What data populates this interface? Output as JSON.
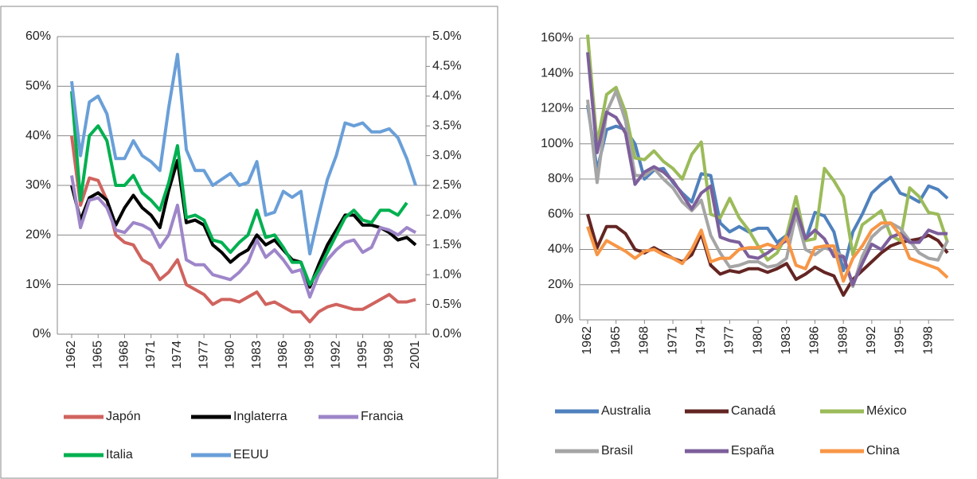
{
  "chart_data": [
    {
      "type": "line",
      "legend": "bottom",
      "grid": true,
      "x": [
        1962,
        1963,
        1964,
        1965,
        1966,
        1967,
        1968,
        1969,
        1970,
        1971,
        1972,
        1973,
        1974,
        1975,
        1976,
        1977,
        1978,
        1979,
        1980,
        1981,
        1982,
        1983,
        1984,
        1985,
        1986,
        1987,
        1988,
        1989,
        1990,
        1991,
        1992,
        1993,
        1994,
        1995,
        1996,
        1997,
        1998,
        1999,
        2000,
        2001
      ],
      "xlim": [
        1962,
        2001
      ],
      "xticks": [
        1962,
        1965,
        1968,
        1971,
        1974,
        1977,
        1980,
        1983,
        1986,
        1989,
        1992,
        1995,
        1998,
        2001
      ],
      "ylim": [
        0,
        60
      ],
      "yticks": [
        {
          "value": 0,
          "label": "0%"
        },
        {
          "value": 10,
          "label": "10%"
        },
        {
          "value": 20,
          "label": "20%"
        },
        {
          "value": 30,
          "label": "30%"
        },
        {
          "value": 40,
          "label": "40%"
        },
        {
          "value": 50,
          "label": "50%"
        },
        {
          "value": 60,
          "label": "60%"
        }
      ],
      "y2lim": [
        0,
        5
      ],
      "y2ticks": [
        {
          "value": 0,
          "label": "0.0%"
        },
        {
          "value": 0.5,
          "label": "0.5%"
        },
        {
          "value": 1,
          "label": "1.0%"
        },
        {
          "value": 1.5,
          "label": "1.5%"
        },
        {
          "value": 2,
          "label": "2.0%"
        },
        {
          "value": 2.5,
          "label": "2.5%"
        },
        {
          "value": 3,
          "label": "3.0%"
        },
        {
          "value": 3.5,
          "label": "3.5%"
        },
        {
          "value": 4,
          "label": "4.0%"
        },
        {
          "value": 4.5,
          "label": "4.5%"
        },
        {
          "value": 5,
          "label": "5.0%"
        }
      ],
      "series": [
        {
          "name": "Japón",
          "color": "#d0635e",
          "values": [
            40,
            26,
            31.5,
            31,
            27,
            20,
            18.5,
            18,
            15,
            14,
            11,
            12.5,
            15,
            10,
            9,
            8,
            6,
            7,
            7,
            6.5,
            7.5,
            8.5,
            6,
            6.5,
            5.5,
            4.5,
            4.5,
            2.5,
            4.5,
            5.5,
            6,
            5.5,
            5,
            5,
            6,
            7,
            8,
            6.5,
            6.5,
            7
          ]
        },
        {
          "name": "Inglaterra",
          "color": "#000000",
          "values": [
            30,
            23,
            27.5,
            28.5,
            27,
            22,
            25.5,
            28,
            25.5,
            24,
            21.5,
            29,
            35,
            22.5,
            23,
            22,
            18,
            16.5,
            14.5,
            16,
            17,
            20,
            18,
            19,
            17,
            15,
            14.5,
            9.5,
            14,
            18,
            21,
            24,
            24,
            22,
            22,
            21.5,
            20.5,
            19,
            19.5,
            18
          ]
        },
        {
          "name": "Francia",
          "color": "#9e86c9",
          "values": [
            32,
            21.5,
            27,
            27.5,
            25.5,
            21,
            20.5,
            22.5,
            22,
            21,
            17.5,
            20,
            26,
            15,
            14,
            14,
            12,
            11.5,
            11,
            12.5,
            14.5,
            19,
            15.5,
            17,
            15,
            12.5,
            13,
            7.5,
            12,
            15,
            17,
            18.5,
            19,
            16.5,
            17.5,
            21.5,
            21,
            20,
            21.5,
            20.5
          ]
        },
        {
          "name": "Italia",
          "color": "#00b050",
          "values": [
            49,
            27,
            40,
            42,
            39,
            30,
            30,
            32,
            28.5,
            27,
            25,
            30.5,
            38,
            23.5,
            24,
            23,
            19,
            18.5,
            16.5,
            18.5,
            20,
            25,
            19.5,
            20,
            17.5,
            14.5,
            14.5,
            10,
            13,
            16.5,
            20,
            23.5,
            25,
            23,
            22.5,
            25,
            25,
            24,
            26.5,
            null
          ]
        },
        {
          "name": "EEUU",
          "color": "#6a9fd8",
          "axis": "y2",
          "values": [
            4.25,
            3.0,
            3.9,
            4.0,
            3.7,
            2.95,
            2.95,
            3.25,
            3.0,
            2.9,
            2.75,
            3.8,
            4.7,
            3.1,
            2.75,
            2.75,
            2.5,
            2.6,
            2.7,
            2.5,
            2.55,
            2.9,
            2.0,
            2.05,
            2.4,
            2.3,
            2.4,
            1.35,
            2.0,
            2.6,
            3.0,
            3.55,
            3.5,
            3.55,
            3.4,
            3.4,
            3.45,
            3.3,
            2.95,
            2.5
          ]
        }
      ]
    },
    {
      "type": "line",
      "legend": "bottom",
      "grid": true,
      "x": [
        1962,
        1963,
        1964,
        1965,
        1966,
        1967,
        1968,
        1969,
        1970,
        1971,
        1972,
        1973,
        1974,
        1975,
        1976,
        1977,
        1978,
        1979,
        1980,
        1981,
        1982,
        1983,
        1984,
        1985,
        1986,
        1987,
        1988,
        1989,
        1990,
        1991,
        1992,
        1993,
        1994,
        1995,
        1996,
        1997,
        1998,
        1999,
        2000
      ],
      "xlim": [
        1962,
        2000
      ],
      "xticks": [
        1962,
        1965,
        1968,
        1971,
        1974,
        1977,
        1980,
        1983,
        1986,
        1989,
        1992,
        1995,
        1998
      ],
      "ylim": [
        0,
        160
      ],
      "yticks": [
        {
          "value": 0,
          "label": "0%"
        },
        {
          "value": 20,
          "label": "20%"
        },
        {
          "value": 40,
          "label": "40%"
        },
        {
          "value": 60,
          "label": "60%"
        },
        {
          "value": 80,
          "label": "80%"
        },
        {
          "value": 100,
          "label": "100%"
        },
        {
          "value": 120,
          "label": "120%"
        },
        {
          "value": 140,
          "label": "140%"
        },
        {
          "value": 160,
          "label": "160%"
        }
      ],
      "series": [
        {
          "name": "Australia",
          "color": "#4f81bd",
          "values": [
            122,
            85,
            108,
            110,
            108,
            100,
            80,
            85,
            86,
            78,
            72,
            67,
            83,
            82,
            55,
            50,
            53,
            50,
            52,
            52,
            44,
            48,
            60,
            45,
            61,
            59,
            50,
            28,
            50,
            60,
            72,
            77,
            81,
            72,
            70,
            67,
            76,
            74,
            69
          ]
        },
        {
          "name": "Canadá",
          "color": "#632523",
          "values": [
            60,
            41,
            53,
            53,
            49,
            40,
            38,
            41,
            38,
            35,
            33,
            37,
            49,
            31,
            26,
            28,
            27,
            29,
            29,
            27,
            29,
            32,
            23,
            26,
            30,
            27,
            25,
            14,
            23,
            28,
            33,
            38,
            42,
            44,
            45,
            46,
            48,
            45,
            38
          ]
        },
        {
          "name": "México",
          "color": "#9bbb59",
          "values": [
            162,
            100,
            128,
            132,
            118,
            92,
            91,
            96,
            90,
            86,
            80,
            94,
            101,
            60,
            58,
            69,
            58,
            51,
            42,
            34,
            38,
            48,
            70,
            45,
            46,
            86,
            79,
            70,
            37,
            54,
            58,
            62,
            48,
            45,
            75,
            70,
            61,
            60,
            44
          ]
        },
        {
          "name": "Brasil",
          "color": "#a5a5a5",
          "values": [
            125,
            78,
            118,
            130,
            113,
            82,
            82,
            86,
            80,
            75,
            67,
            62,
            68,
            48,
            38,
            30,
            31,
            33,
            33,
            30,
            31,
            35,
            60,
            40,
            37,
            41,
            39,
            36,
            19,
            36,
            47,
            52,
            55,
            52,
            45,
            38,
            35,
            34,
            45
          ]
        },
        {
          "name": "España",
          "color": "#7d5f9b",
          "values": [
            152,
            95,
            118,
            115,
            106,
            77,
            84,
            87,
            84,
            79,
            71,
            63,
            72,
            76,
            47,
            45,
            44,
            36,
            35,
            38,
            42,
            45,
            63,
            46,
            51,
            46,
            36,
            36,
            20,
            32,
            43,
            40,
            47,
            49,
            44,
            44,
            51,
            49,
            49
          ]
        },
        {
          "name": "China",
          "color": "#f79646",
          "values": [
            53,
            37,
            45,
            42,
            39,
            35,
            39,
            40,
            37,
            35,
            32,
            40,
            51,
            33,
            35,
            35,
            40,
            41,
            41,
            43,
            41,
            47,
            31,
            29,
            41,
            42,
            42,
            22,
            35,
            42,
            51,
            55,
            55,
            48,
            35,
            33,
            31,
            29,
            24
          ]
        }
      ]
    }
  ]
}
